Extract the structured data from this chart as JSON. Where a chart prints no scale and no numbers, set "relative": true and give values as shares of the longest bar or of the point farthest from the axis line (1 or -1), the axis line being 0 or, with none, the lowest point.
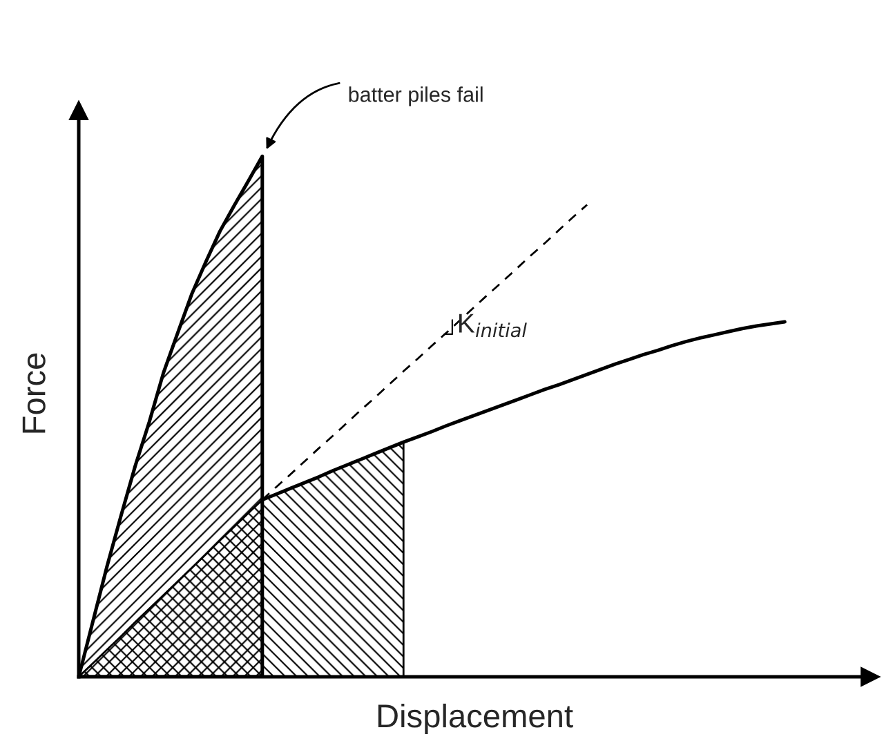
{
  "chart_data": {
    "type": "line",
    "relative": true,
    "xlabel": "Displacement",
    "ylabel": "Force",
    "categories": [
      null,
      null,
      null,
      null,
      null,
      null,
      null,
      null,
      null,
      null,
      null,
      null,
      null,
      null,
      null,
      null,
      null,
      null,
      null,
      null,
      null,
      null,
      null,
      null,
      null,
      null,
      null,
      null,
      null,
      null,
      null,
      null,
      null,
      null,
      null,
      null,
      null,
      null,
      null,
      null,
      null,
      null,
      null,
      null,
      null,
      null,
      null,
      null,
      null,
      null,
      null
    ],
    "series": [
      {
        "type": "area",
        "color": "#000000",
        "values": [
          0,
          0.106,
          0.212,
          0.31,
          0.405,
          0.49,
          0.584,
          0.66,
          0.735,
          0.797,
          0.856,
          0.905,
          0.952,
          1.0,
          null,
          null,
          null,
          null,
          null,
          null,
          null,
          null,
          null,
          null,
          null,
          null,
          null,
          null,
          null,
          null,
          null,
          null,
          null,
          null,
          null,
          null,
          null,
          null,
          null,
          null,
          null,
          null,
          null,
          null,
          null,
          null,
          null,
          null,
          null,
          null,
          null
        ]
      },
      {
        "type": "area",
        "color": "#000000",
        "values": [
          0,
          0.026,
          0.052,
          0.078,
          0.105,
          0.131,
          0.157,
          0.183,
          0.209,
          0.235,
          0.262,
          0.288,
          0.314,
          0.34,
          0.351,
          0.362,
          0.373,
          0.384,
          0.396,
          0.407,
          0.418,
          0.429,
          0.44,
          0.451,
          null,
          null,
          null,
          null,
          null,
          null,
          null,
          null,
          null,
          null,
          null,
          null,
          null,
          null,
          null,
          null,
          null,
          null,
          null,
          null,
          null,
          null,
          null,
          null,
          null,
          null,
          null
        ]
      },
      {
        "color": "#000000",
        "line_style": "solid",
        "values": [
          null,
          null,
          null,
          null,
          null,
          null,
          null,
          null,
          null,
          null,
          null,
          null,
          null,
          0.34,
          0.351,
          0.362,
          0.373,
          0.384,
          0.396,
          0.407,
          0.418,
          0.429,
          0.44,
          0.451,
          0.461,
          0.471,
          0.482,
          0.492,
          0.502,
          0.512,
          0.522,
          0.532,
          0.542,
          0.552,
          0.561,
          0.571,
          0.581,
          0.591,
          0.601,
          0.61,
          0.619,
          0.627,
          0.636,
          0.644,
          0.651,
          0.657,
          0.663,
          0.669,
          0.674,
          0.678,
          0.682
        ]
      },
      {
        "color": "#000000",
        "line_style": "dashed",
        "values": [
          null,
          null,
          null,
          null,
          null,
          null,
          null,
          null,
          null,
          null,
          null,
          null,
          null,
          0.34,
          0.365,
          0.389,
          0.414,
          0.439,
          0.463,
          0.488,
          0.513,
          0.537,
          0.562,
          0.587,
          0.611,
          0.636,
          0.66,
          0.685,
          0.71,
          0.735,
          0.759,
          0.784,
          0.809,
          0.833,
          0.858,
          0.883,
          0.907,
          null,
          null,
          null,
          null,
          null,
          null,
          null,
          null,
          null,
          null,
          null,
          null,
          null,
          null
        ]
      }
    ],
    "annotations": [
      "batter piles fail",
      "K$_{initial}$"
    ]
  }
}
